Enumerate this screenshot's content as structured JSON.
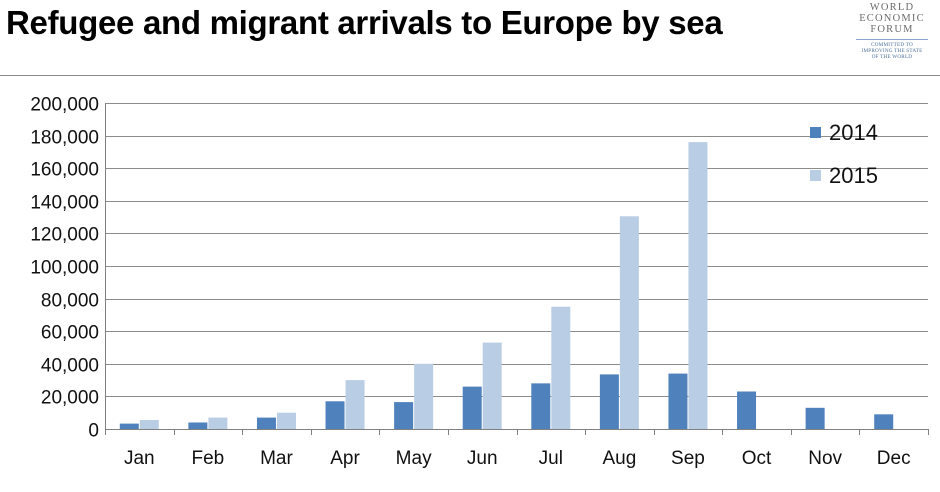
{
  "header": {
    "title": "Refugee and migrant arrivals to Europe by sea",
    "logo": {
      "lines": [
        "WORLD",
        "ECONOMIC",
        "FORUM"
      ],
      "tagline": [
        "COMMITTED TO",
        "IMPROVING THE STATE",
        "OF THE WORLD"
      ]
    }
  },
  "colors": {
    "series_2014": "#4f81bd",
    "series_2015": "#b9cde5",
    "grid": "#8c8c8c"
  },
  "chart_data": {
    "type": "bar",
    "title": "Refugee and migrant arrivals to Europe by sea",
    "xlabel": "",
    "ylabel": "",
    "categories": [
      "Jan",
      "Feb",
      "Mar",
      "Apr",
      "May",
      "Jun",
      "Jul",
      "Aug",
      "Sep",
      "Oct",
      "Nov",
      "Dec"
    ],
    "series": [
      {
        "name": "2014",
        "values": [
          3300,
          4000,
          7000,
          17000,
          16500,
          26000,
          28000,
          33500,
          34000,
          23000,
          13000,
          9000
        ]
      },
      {
        "name": "2015",
        "values": [
          5500,
          7000,
          10000,
          30000,
          40000,
          53000,
          75000,
          130500,
          176000,
          null,
          null,
          null
        ]
      }
    ],
    "yticks": [
      "0",
      "20,000",
      "40,000",
      "60,000",
      "80,000",
      "100,000",
      "120,000",
      "140,000",
      "160,000",
      "180,000",
      "200,000"
    ],
    "ylim": [
      0,
      200000
    ],
    "grid": true,
    "legend": "top-right"
  }
}
